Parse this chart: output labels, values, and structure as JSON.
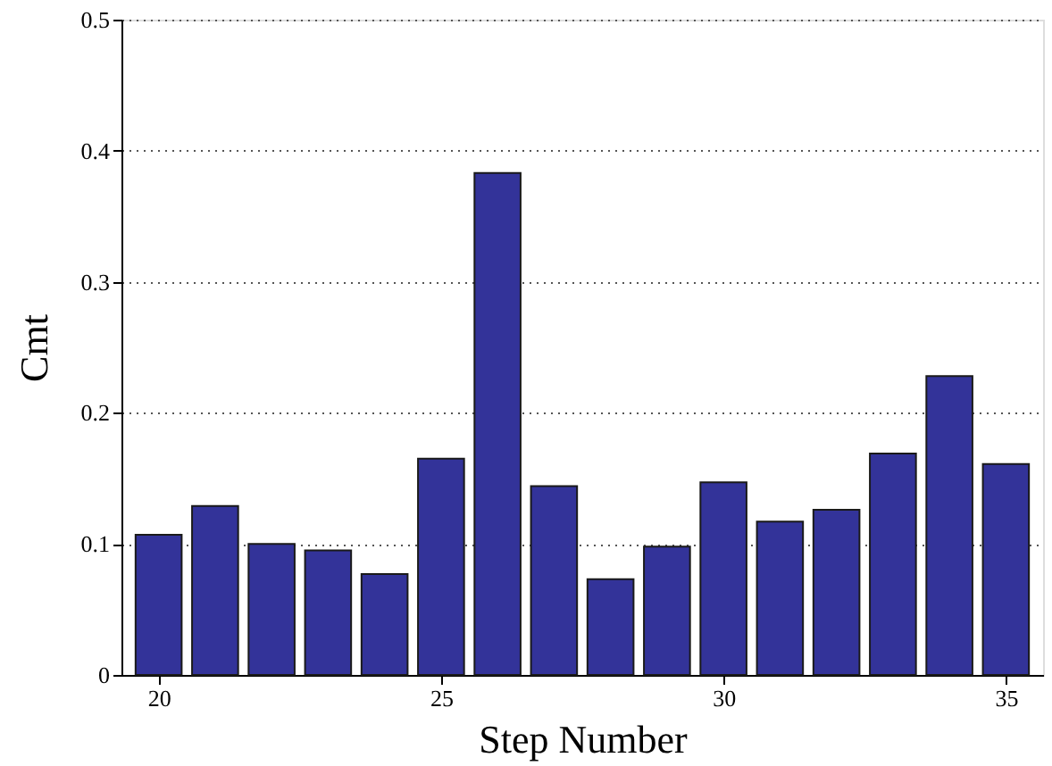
{
  "chart_data": {
    "type": "bar",
    "xlabel": "Step Number",
    "ylabel": "Cmt",
    "x": [
      20,
      21,
      22,
      23,
      24,
      25,
      26,
      27,
      28,
      29,
      30,
      31,
      32,
      33,
      34,
      35
    ],
    "values": [
      0.107,
      0.129,
      0.1,
      0.095,
      0.077,
      0.165,
      0.383,
      0.144,
      0.073,
      0.098,
      0.147,
      0.117,
      0.126,
      0.169,
      0.228,
      0.161
    ],
    "color": "#333399",
    "xlim": [
      19.5,
      35.5
    ],
    "xticks": [
      20,
      25,
      30,
      35
    ],
    "ylim": [
      0,
      0.5
    ],
    "yticks": [
      0,
      0.1,
      0.2,
      0.3,
      0.4,
      0.5
    ],
    "grid": "y"
  }
}
